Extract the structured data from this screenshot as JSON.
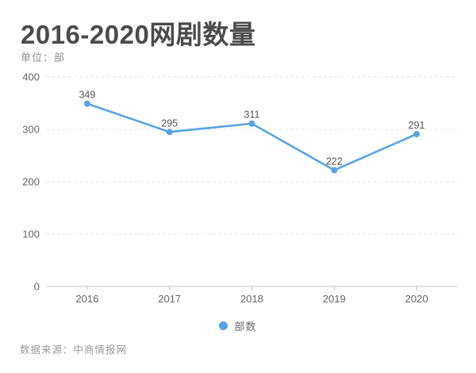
{
  "header": {
    "title": "2016-2020网剧数量",
    "unit_label": "单位：部"
  },
  "chart_data": {
    "type": "line",
    "title": "2016-2020网剧数量",
    "categories": [
      "2016",
      "2017",
      "2018",
      "2019",
      "2020"
    ],
    "series": [
      {
        "name": "部数",
        "values": [
          349,
          295,
          311,
          222,
          291
        ]
      }
    ],
    "ylabel": "单位：部",
    "ylim": [
      0,
      400
    ],
    "ytick_interval": 100,
    "grid": true,
    "grid_style": "dashed",
    "legend_position": "bottom",
    "show_point_labels": true,
    "colors": {
      "line": "#58a3e6",
      "point": "#58a3e6",
      "point_label": "#555555",
      "axis_text": "#666666",
      "axis_line": "#c9c9c9",
      "gridline": "#e3e3e3"
    }
  },
  "legend": {
    "items": [
      {
        "label": "部数",
        "color": "#58a3e6"
      }
    ]
  },
  "footer": {
    "source": "数据来源：中商情报网"
  }
}
